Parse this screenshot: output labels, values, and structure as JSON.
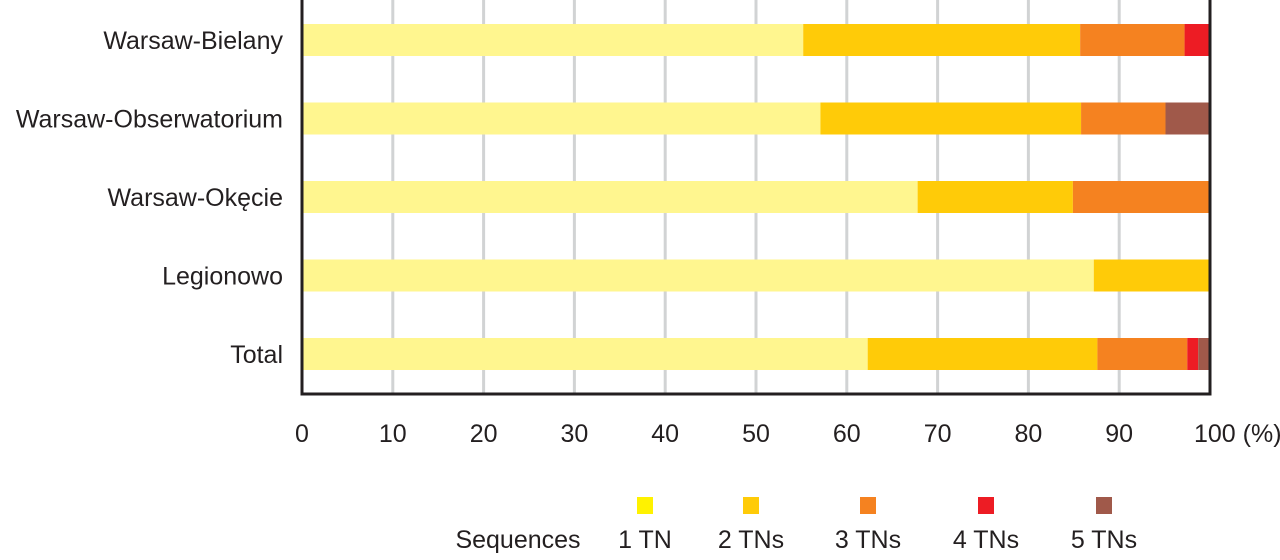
{
  "chart_data": {
    "type": "bar",
    "orientation": "horizontal",
    "stacked": true,
    "categories": [
      "Warsaw-Bielany",
      "Warsaw-Obserwatorium",
      "Warsaw-Okęcie",
      "Legionowo",
      "Total"
    ],
    "series": [
      {
        "name": "1 TN",
        "color": "#fff68f",
        "legend_color": "#fff200",
        "values": [
          55.2,
          57.1,
          67.8,
          87.2,
          62.3
        ]
      },
      {
        "name": "2 TNs",
        "color": "#ffcb08",
        "legend_color": "#ffcb08",
        "values": [
          30.5,
          28.7,
          17.1,
          12.8,
          25.3
        ]
      },
      {
        "name": "3 TNs",
        "color": "#f58220",
        "legend_color": "#f58220",
        "values": [
          11.5,
          9.3,
          15.1,
          0,
          9.9
        ]
      },
      {
        "name": "4 TNs",
        "color": "#ed1c24",
        "legend_color": "#ed1c24",
        "values": [
          2.8,
          0,
          0,
          0,
          1.2
        ]
      },
      {
        "name": "5 TNs",
        "color": "#a0594a",
        "legend_color": "#a0594a",
        "values": [
          0,
          4.9,
          0,
          0,
          1.3
        ]
      }
    ],
    "x_ticks": [
      "0",
      "10",
      "20",
      "30",
      "40",
      "50",
      "60",
      "70",
      "80",
      "90",
      "100 (%)"
    ],
    "xlim": [
      0,
      100
    ],
    "grid": true,
    "legend_title": "Sequences",
    "legend_placement": "bottom"
  }
}
